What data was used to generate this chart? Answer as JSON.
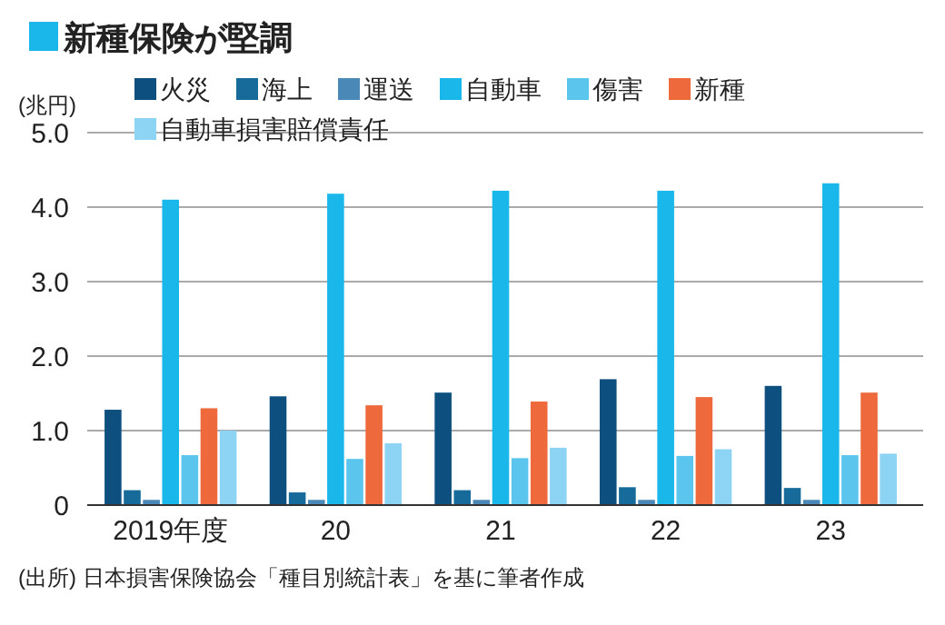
{
  "chart_data": {
    "type": "bar",
    "title": "新種保険が堅調",
    "ylabel": "(兆円)",
    "categories": [
      "2019年度",
      "20",
      "21",
      "22",
      "23"
    ],
    "series": [
      {
        "name": "火災",
        "color": "#0d4f7e",
        "values": [
          1.28,
          1.46,
          1.51,
          1.69,
          1.6
        ]
      },
      {
        "name": "海上",
        "color": "#176b9b",
        "values": [
          0.2,
          0.17,
          0.2,
          0.24,
          0.23
        ]
      },
      {
        "name": "運送",
        "color": "#4a88b8",
        "values": [
          0.07,
          0.07,
          0.07,
          0.07,
          0.07
        ]
      },
      {
        "name": "自動車",
        "color": "#1ab7ea",
        "values": [
          4.1,
          4.18,
          4.22,
          4.22,
          4.32
        ]
      },
      {
        "name": "傷害",
        "color": "#5bc5ee",
        "values": [
          0.67,
          0.62,
          0.63,
          0.66,
          0.67
        ]
      },
      {
        "name": "新種",
        "color": "#ee6a3c",
        "values": [
          1.3,
          1.34,
          1.39,
          1.45,
          1.51
        ]
      },
      {
        "name": "自動車損害賠償責任",
        "color": "#8dd3f3",
        "values": [
          1.0,
          0.83,
          0.77,
          0.75,
          0.69
        ]
      }
    ],
    "ylim": [
      0,
      5
    ],
    "yticks": [
      0,
      {
        "value": 1,
        "label": "1.0"
      },
      {
        "value": 2,
        "label": "2.0"
      },
      {
        "value": 3,
        "label": "3.0"
      },
      {
        "value": 4,
        "label": "4.0"
      },
      {
        "value": 5,
        "label": "5.0"
      }
    ],
    "grid": "y",
    "legend": "top",
    "annotations": [
      "(出所) 日本損害保険協会「種目別統計表」を基に筆者作成"
    ]
  }
}
